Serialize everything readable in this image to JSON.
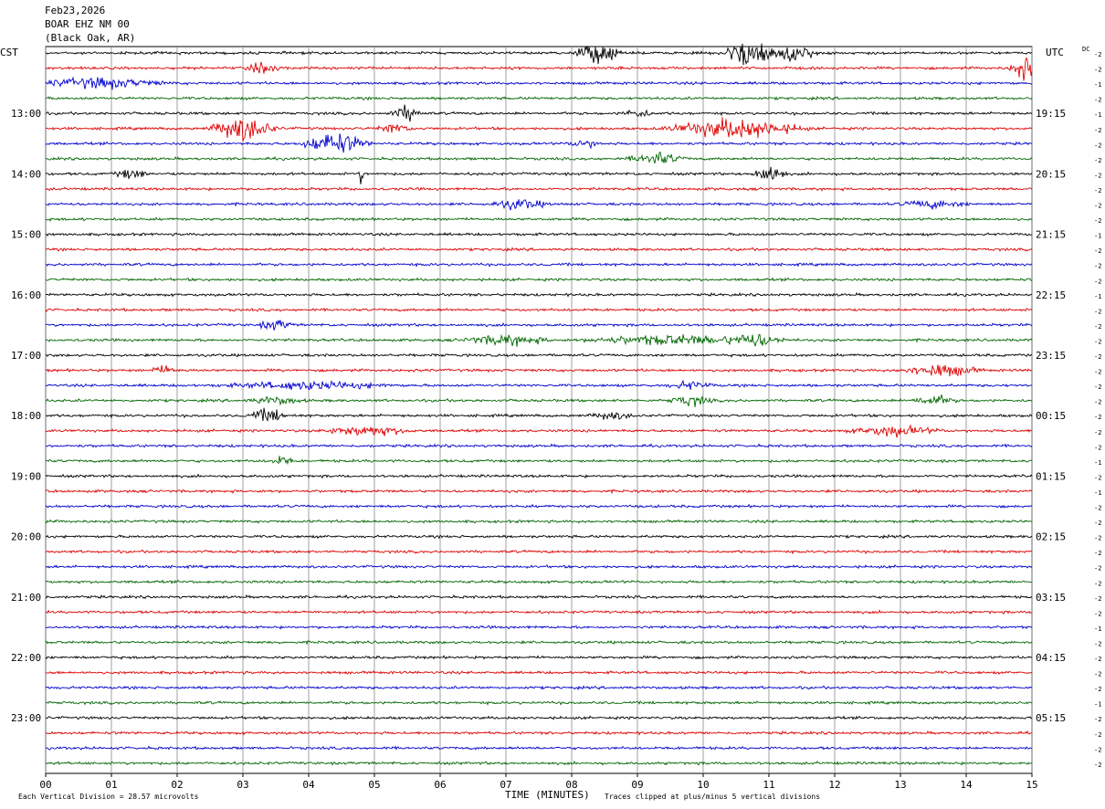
{
  "header": {
    "date": "Feb23,2026",
    "station": "BOAR EHZ NM 00",
    "location": "(Black Oak, AR)"
  },
  "chart_data": {
    "type": "line",
    "title": "",
    "xlabel": "TIME (MINUTES)",
    "ylabel": "",
    "xlim": [
      0,
      15
    ],
    "x_ticks": [
      "00",
      "01",
      "02",
      "03",
      "04",
      "05",
      "06",
      "07",
      "08",
      "09",
      "10",
      "11",
      "12",
      "13",
      "14",
      "15"
    ],
    "left_axis_label": "CST",
    "right_axis_label": "UTC",
    "dc_label": "DC",
    "left_hour_labels": [
      "13:00",
      "14:00",
      "15:00",
      "16:00",
      "17:00",
      "18:00",
      "19:00",
      "20:00",
      "21:00",
      "22:00",
      "23:00"
    ],
    "right_hour_labels": [
      "19:15",
      "20:15",
      "21:15",
      "22:15",
      "23:15",
      "00:15",
      "01:15",
      "02:15",
      "03:15",
      "04:15",
      "05:15"
    ],
    "first_labeled_trace_index": 4,
    "traces_per_hour": 4,
    "trace_count": 48,
    "trace_colors": [
      "#000000",
      "#dd0000",
      "#0000cc",
      "#006600"
    ],
    "dc_offsets": [
      -2,
      -2,
      -1,
      -2,
      -1,
      -2,
      -2,
      -2,
      -2,
      -2,
      -2,
      -2,
      -1,
      -2,
      -2,
      -2,
      -1,
      -2,
      -2,
      -2,
      -2,
      -2,
      -2,
      -2,
      -2,
      -2,
      -2,
      -1,
      -2,
      -1,
      -2,
      -2,
      -2,
      -2,
      -2,
      -2,
      -2,
      -2,
      -1,
      -2,
      -2,
      -2,
      -2,
      -1,
      -2,
      -2,
      -2,
      -2
    ],
    "events": [
      {
        "trace": 0,
        "minute": 8.4,
        "amp": 9,
        "dur": 0.4
      },
      {
        "trace": 0,
        "minute": 10.7,
        "amp": 12,
        "dur": 0.5
      },
      {
        "trace": 0,
        "minute": 11.4,
        "amp": 7,
        "dur": 0.4
      },
      {
        "trace": 1,
        "minute": 14.9,
        "amp": 9,
        "dur": 0.3
      },
      {
        "trace": 1,
        "minute": 3.3,
        "amp": 4,
        "dur": 0.3
      },
      {
        "trace": 2,
        "minute": 0.8,
        "amp": 4,
        "dur": 1.2
      },
      {
        "trace": 4,
        "minute": 5.5,
        "amp": 6,
        "dur": 0.3
      },
      {
        "trace": 4,
        "minute": 9.0,
        "amp": 3,
        "dur": 0.3
      },
      {
        "trace": 5,
        "minute": 3.0,
        "amp": 10,
        "dur": 0.6
      },
      {
        "trace": 5,
        "minute": 10.5,
        "amp": 8,
        "dur": 1.2
      },
      {
        "trace": 5,
        "minute": 5.3,
        "amp": 4,
        "dur": 0.3
      },
      {
        "trace": 6,
        "minute": 4.4,
        "amp": 9,
        "dur": 0.6
      },
      {
        "trace": 6,
        "minute": 8.2,
        "amp": 3,
        "dur": 0.3
      },
      {
        "trace": 7,
        "minute": 9.3,
        "amp": 5,
        "dur": 0.5
      },
      {
        "trace": 8,
        "minute": 1.3,
        "amp": 4,
        "dur": 0.3
      },
      {
        "trace": 8,
        "minute": 11.0,
        "amp": 8,
        "dur": 0.3
      },
      {
        "trace": 8,
        "minute": 4.8,
        "amp": 8,
        "dur": 0.05
      },
      {
        "trace": 10,
        "minute": 7.2,
        "amp": 4,
        "dur": 0.5
      },
      {
        "trace": 10,
        "minute": 13.5,
        "amp": 3,
        "dur": 0.6
      },
      {
        "trace": 18,
        "minute": 3.5,
        "amp": 4,
        "dur": 0.3
      },
      {
        "trace": 19,
        "minute": 7.0,
        "amp": 4,
        "dur": 0.8
      },
      {
        "trace": 19,
        "minute": 9.5,
        "amp": 4,
        "dur": 1.5
      },
      {
        "trace": 19,
        "minute": 10.8,
        "amp": 5,
        "dur": 0.5
      },
      {
        "trace": 21,
        "minute": 13.6,
        "amp": 5,
        "dur": 0.7
      },
      {
        "trace": 21,
        "minute": 1.8,
        "amp": 3,
        "dur": 0.3
      },
      {
        "trace": 22,
        "minute": 4.0,
        "amp": 3,
        "dur": 1.5
      },
      {
        "trace": 22,
        "minute": 9.8,
        "amp": 3,
        "dur": 0.4
      },
      {
        "trace": 23,
        "minute": 3.5,
        "amp": 3,
        "dur": 0.5
      },
      {
        "trace": 23,
        "minute": 9.8,
        "amp": 4,
        "dur": 0.4
      },
      {
        "trace": 23,
        "minute": 13.5,
        "amp": 4,
        "dur": 0.4
      },
      {
        "trace": 24,
        "minute": 3.4,
        "amp": 5,
        "dur": 0.4
      },
      {
        "trace": 24,
        "minute": 8.6,
        "amp": 3,
        "dur": 0.4
      },
      {
        "trace": 25,
        "minute": 4.9,
        "amp": 4,
        "dur": 0.8
      },
      {
        "trace": 25,
        "minute": 12.9,
        "amp": 4,
        "dur": 0.8
      },
      {
        "trace": 27,
        "minute": 3.6,
        "amp": 4,
        "dur": 0.2
      }
    ],
    "footer_left": "Each Vertical Division =    28.57 microvolts",
    "footer_right": "Traces clipped at plus/minus 5 vertical divisions"
  }
}
